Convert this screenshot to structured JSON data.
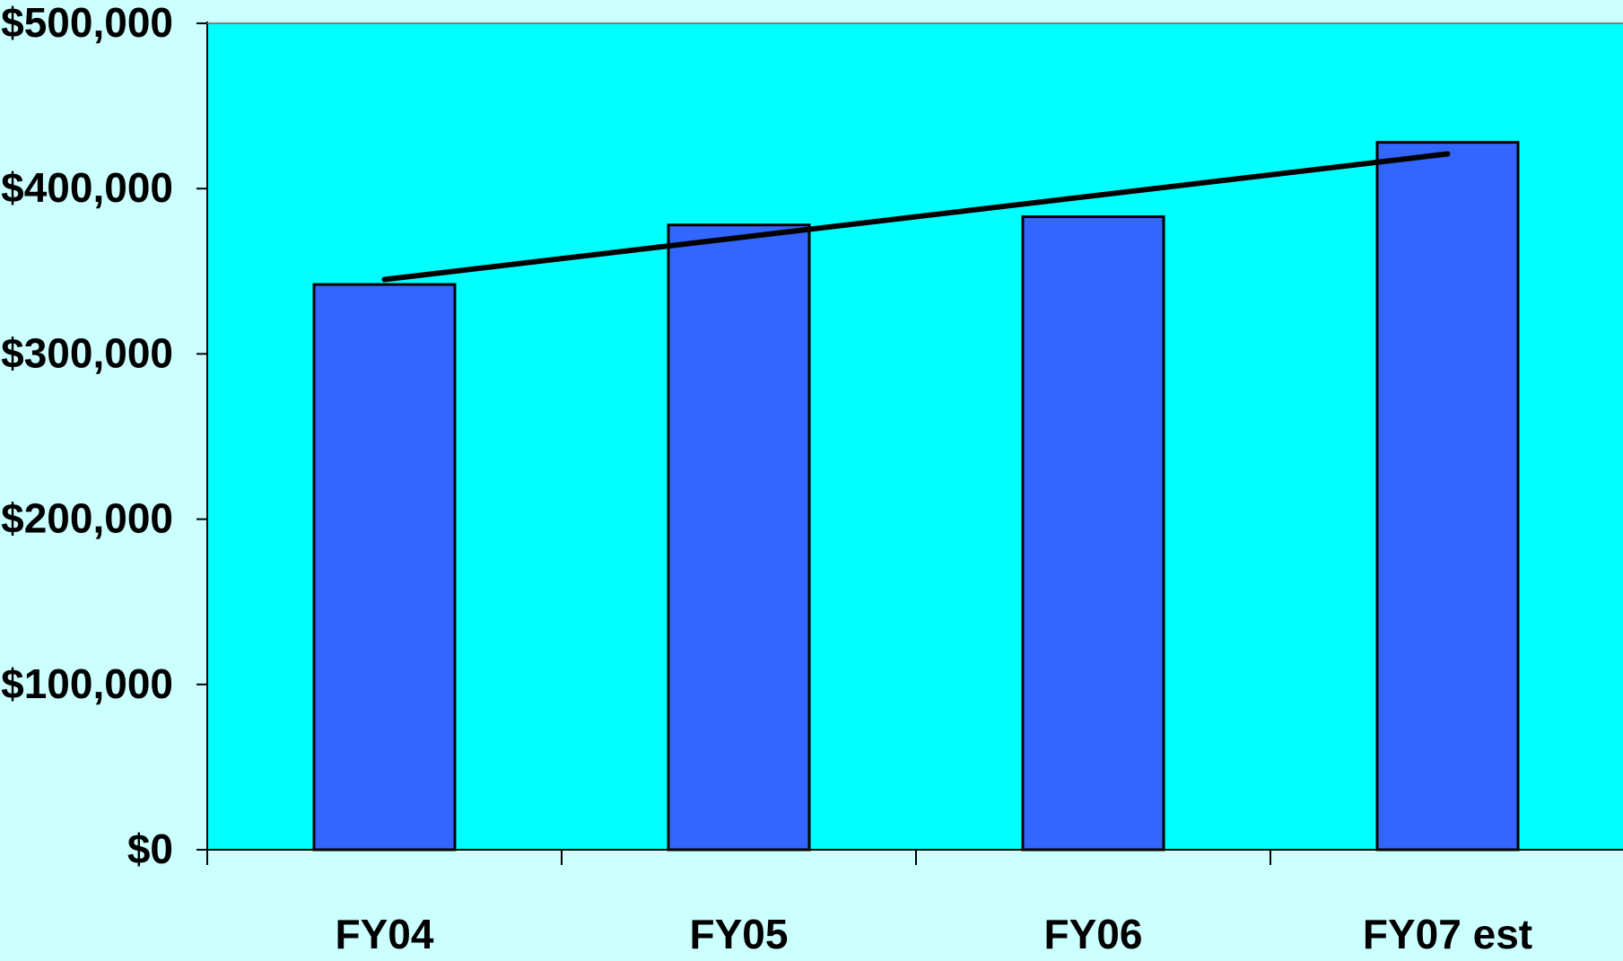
{
  "chart_data": {
    "type": "bar",
    "categories": [
      "FY04",
      "FY05",
      "FY06",
      "FY07 est"
    ],
    "series": [
      {
        "values": [
          342000,
          378000,
          383000,
          428000
        ]
      }
    ],
    "trendline": {
      "type": "linear",
      "values": [
        345000,
        370000,
        396000,
        421000
      ]
    },
    "ylim": [
      0,
      500000
    ],
    "yticks": [
      0,
      100000,
      200000,
      300000,
      400000,
      500000
    ],
    "ytick_labels": [
      "$0",
      "$100,000",
      "$200,000",
      "$300,000",
      "$400,000",
      "$500,000"
    ],
    "title": "",
    "xlabel": "",
    "ylabel": "",
    "grid": false,
    "legend": "none",
    "colors": {
      "page_background": "#ccffff",
      "plot_background": "#00ffff",
      "bar_fill": "#3366ff",
      "bar_stroke": "#000000",
      "trendline": "#000000",
      "axis": "#000000"
    }
  }
}
